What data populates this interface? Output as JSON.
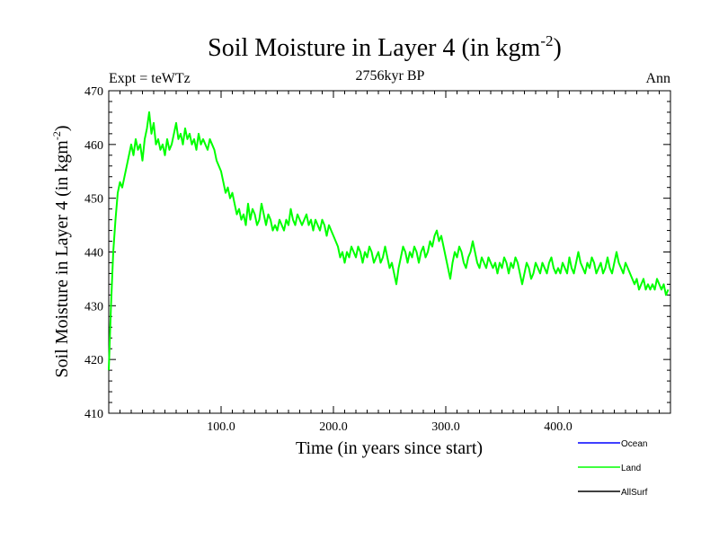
{
  "chart_data": {
    "type": "line",
    "title": "Soil Moisture in Layer 4 (in kgm",
    "title_superscript": "-2",
    "title_suffix": ")",
    "subtitle": "2756kyr BP",
    "left_label": "Expt = teWTz",
    "right_label": "Ann",
    "xlabel": "Time (in years since start)",
    "ylabel": "Soil Moisture in Layer 4 (in kgm",
    "ylabel_superscript": "-2",
    "ylabel_suffix": ")",
    "xlim": [
      0,
      500
    ],
    "ylim": [
      410,
      470
    ],
    "x_ticks": [
      100,
      200,
      300,
      400
    ],
    "x_tick_labels": [
      "100.0",
      "200.0",
      "300.0",
      "400.0"
    ],
    "y_ticks": [
      410,
      420,
      430,
      440,
      450,
      460,
      470
    ],
    "y_tick_labels": [
      "410",
      "420",
      "430",
      "440",
      "450",
      "460",
      "470"
    ],
    "legend": [
      {
        "name": "Ocean",
        "color": "#0000ff"
      },
      {
        "name": "Land",
        "color": "#00ff00"
      },
      {
        "name": "AllSurf",
        "color": "#000000"
      }
    ],
    "series": [
      {
        "name": "Land",
        "color": "#00ff00",
        "points": [
          [
            0,
            418
          ],
          [
            2,
            430
          ],
          [
            4,
            440
          ],
          [
            6,
            446
          ],
          [
            8,
            451
          ],
          [
            10,
            453
          ],
          [
            12,
            452
          ],
          [
            14,
            454
          ],
          [
            16,
            456
          ],
          [
            18,
            458
          ],
          [
            20,
            460
          ],
          [
            22,
            458
          ],
          [
            24,
            461
          ],
          [
            26,
            459
          ],
          [
            28,
            460
          ],
          [
            30,
            457
          ],
          [
            32,
            461
          ],
          [
            34,
            463
          ],
          [
            36,
            466
          ],
          [
            38,
            462
          ],
          [
            40,
            464
          ],
          [
            42,
            460
          ],
          [
            44,
            461
          ],
          [
            46,
            459
          ],
          [
            48,
            460
          ],
          [
            50,
            458
          ],
          [
            52,
            461
          ],
          [
            54,
            459
          ],
          [
            56,
            460
          ],
          [
            58,
            462
          ],
          [
            60,
            464
          ],
          [
            62,
            461
          ],
          [
            64,
            462
          ],
          [
            66,
            460
          ],
          [
            68,
            463
          ],
          [
            70,
            461
          ],
          [
            72,
            462
          ],
          [
            74,
            460
          ],
          [
            76,
            461
          ],
          [
            78,
            459
          ],
          [
            80,
            462
          ],
          [
            82,
            460
          ],
          [
            84,
            461
          ],
          [
            86,
            460
          ],
          [
            88,
            459
          ],
          [
            90,
            461
          ],
          [
            92,
            460
          ],
          [
            94,
            459
          ],
          [
            96,
            457
          ],
          [
            98,
            456
          ],
          [
            100,
            455
          ],
          [
            102,
            453
          ],
          [
            104,
            451
          ],
          [
            106,
            452
          ],
          [
            108,
            450
          ],
          [
            110,
            451
          ],
          [
            112,
            449
          ],
          [
            114,
            447
          ],
          [
            116,
            448
          ],
          [
            118,
            446
          ],
          [
            120,
            447
          ],
          [
            122,
            445
          ],
          [
            124,
            449
          ],
          [
            126,
            446
          ],
          [
            128,
            448
          ],
          [
            130,
            447
          ],
          [
            132,
            445
          ],
          [
            134,
            446
          ],
          [
            136,
            449
          ],
          [
            138,
            447
          ],
          [
            140,
            445
          ],
          [
            142,
            447
          ],
          [
            144,
            446
          ],
          [
            146,
            444
          ],
          [
            148,
            445
          ],
          [
            150,
            444
          ],
          [
            152,
            446
          ],
          [
            154,
            445
          ],
          [
            156,
            444
          ],
          [
            158,
            446
          ],
          [
            160,
            445
          ],
          [
            162,
            448
          ],
          [
            164,
            446
          ],
          [
            166,
            445
          ],
          [
            168,
            447
          ],
          [
            170,
            446
          ],
          [
            172,
            445
          ],
          [
            174,
            446
          ],
          [
            176,
            447
          ],
          [
            178,
            445
          ],
          [
            180,
            446
          ],
          [
            182,
            444
          ],
          [
            184,
            446
          ],
          [
            186,
            445
          ],
          [
            188,
            444
          ],
          [
            190,
            446
          ],
          [
            192,
            445
          ],
          [
            194,
            443
          ],
          [
            196,
            445
          ],
          [
            198,
            444
          ],
          [
            200,
            443
          ],
          [
            202,
            442
          ],
          [
            204,
            441
          ],
          [
            206,
            439
          ],
          [
            208,
            440
          ],
          [
            210,
            438
          ],
          [
            212,
            440
          ],
          [
            214,
            439
          ],
          [
            216,
            441
          ],
          [
            218,
            440
          ],
          [
            220,
            439
          ],
          [
            222,
            441
          ],
          [
            224,
            440
          ],
          [
            226,
            438
          ],
          [
            228,
            440
          ],
          [
            230,
            439
          ],
          [
            232,
            441
          ],
          [
            234,
            440
          ],
          [
            236,
            438
          ],
          [
            238,
            439
          ],
          [
            240,
            440
          ],
          [
            242,
            438
          ],
          [
            244,
            439
          ],
          [
            246,
            441
          ],
          [
            248,
            439
          ],
          [
            250,
            437
          ],
          [
            252,
            438
          ],
          [
            254,
            436
          ],
          [
            256,
            434
          ],
          [
            258,
            437
          ],
          [
            260,
            439
          ],
          [
            262,
            441
          ],
          [
            264,
            440
          ],
          [
            266,
            438
          ],
          [
            268,
            440
          ],
          [
            270,
            439
          ],
          [
            272,
            441
          ],
          [
            274,
            440
          ],
          [
            276,
            438
          ],
          [
            278,
            440
          ],
          [
            280,
            441
          ],
          [
            282,
            439
          ],
          [
            284,
            440
          ],
          [
            286,
            442
          ],
          [
            288,
            441
          ],
          [
            290,
            443
          ],
          [
            292,
            444
          ],
          [
            294,
            442
          ],
          [
            296,
            443
          ],
          [
            298,
            441
          ],
          [
            300,
            439
          ],
          [
            302,
            437
          ],
          [
            304,
            435
          ],
          [
            306,
            438
          ],
          [
            308,
            440
          ],
          [
            310,
            439
          ],
          [
            312,
            441
          ],
          [
            314,
            440
          ],
          [
            316,
            438
          ],
          [
            318,
            437
          ],
          [
            320,
            439
          ],
          [
            322,
            440
          ],
          [
            324,
            442
          ],
          [
            326,
            440
          ],
          [
            328,
            438
          ],
          [
            330,
            437
          ],
          [
            332,
            439
          ],
          [
            334,
            438
          ],
          [
            336,
            437
          ],
          [
            338,
            439
          ],
          [
            340,
            438
          ],
          [
            342,
            437
          ],
          [
            344,
            438
          ],
          [
            346,
            436
          ],
          [
            348,
            438
          ],
          [
            350,
            437
          ],
          [
            352,
            439
          ],
          [
            354,
            438
          ],
          [
            356,
            436
          ],
          [
            358,
            438
          ],
          [
            360,
            437
          ],
          [
            362,
            439
          ],
          [
            364,
            438
          ],
          [
            366,
            436
          ],
          [
            368,
            434
          ],
          [
            370,
            436
          ],
          [
            372,
            438
          ],
          [
            374,
            437
          ],
          [
            376,
            435
          ],
          [
            378,
            436
          ],
          [
            380,
            438
          ],
          [
            382,
            437
          ],
          [
            384,
            436
          ],
          [
            386,
            438
          ],
          [
            388,
            437
          ],
          [
            390,
            436
          ],
          [
            392,
            438
          ],
          [
            394,
            439
          ],
          [
            396,
            437
          ],
          [
            398,
            436
          ],
          [
            400,
            437
          ],
          [
            402,
            436
          ],
          [
            404,
            438
          ],
          [
            406,
            437
          ],
          [
            408,
            436
          ],
          [
            410,
            439
          ],
          [
            412,
            437
          ],
          [
            414,
            436
          ],
          [
            416,
            438
          ],
          [
            418,
            440
          ],
          [
            420,
            438
          ],
          [
            422,
            437
          ],
          [
            424,
            436
          ],
          [
            426,
            438
          ],
          [
            428,
            437
          ],
          [
            430,
            439
          ],
          [
            432,
            438
          ],
          [
            434,
            436
          ],
          [
            436,
            437
          ],
          [
            438,
            438
          ],
          [
            440,
            436
          ],
          [
            442,
            437
          ],
          [
            444,
            439
          ],
          [
            446,
            437
          ],
          [
            448,
            436
          ],
          [
            450,
            438
          ],
          [
            452,
            440
          ],
          [
            454,
            438
          ],
          [
            456,
            437
          ],
          [
            458,
            436
          ],
          [
            460,
            438
          ],
          [
            462,
            437
          ],
          [
            464,
            436
          ],
          [
            466,
            435
          ],
          [
            468,
            434
          ],
          [
            470,
            435
          ],
          [
            472,
            433
          ],
          [
            474,
            434
          ],
          [
            476,
            435
          ],
          [
            478,
            433
          ],
          [
            480,
            434
          ],
          [
            482,
            433
          ],
          [
            484,
            434
          ],
          [
            486,
            433
          ],
          [
            488,
            435
          ],
          [
            490,
            434
          ],
          [
            492,
            433
          ],
          [
            494,
            434
          ],
          [
            496,
            432
          ],
          [
            498,
            433
          ]
        ]
      }
    ]
  }
}
